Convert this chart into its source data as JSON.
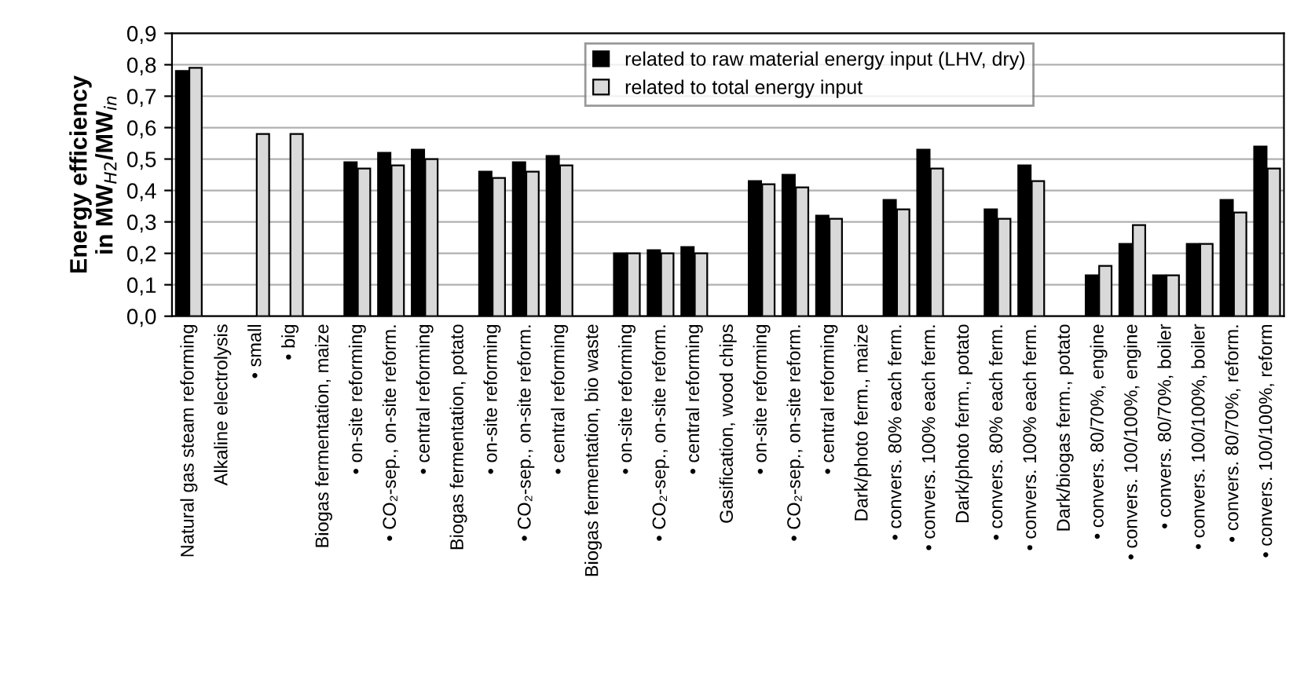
{
  "chart_data": {
    "type": "bar",
    "ylabel": "Energy efficiency\nin MW$_{H2}$/MW$_{in}$",
    "categories": [
      "Natural gas steam reforming",
      "Alkaline electrolysis",
      "• small",
      "• big",
      "Biogas fermentation, maize",
      "• on-site reforming",
      "• CO₂-sep., on-site reform.",
      "• central reforming",
      "Biogas fermentation, potato",
      "• on-site reforming",
      "• CO₂-sep., on-site reform.",
      "• central reforming",
      "Biogas fermentation, bio waste",
      "• on-site reforming",
      "• CO₂-sep., on-site reform.",
      "• central reforming",
      "Gasification, wood chips",
      "• on-site reforming",
      "• CO₂-sep., on-site reform.",
      "• central reforming",
      "Dark/photo ferm., maize",
      "• convers. 80% each ferm.",
      "• convers. 100% each ferm.",
      "Dark/photo ferm., potato",
      "• convers. 80% each ferm.",
      "• convers. 100% each ferm.",
      "Dark/biogas ferm., potato",
      "• convers. 80/70%, engine",
      "• convers. 100/100%, engine",
      "• convers. 80/70%, boiler",
      "• convers. 100/100%, boiler",
      "• convers. 80/70%, reform.",
      "• convers. 100/100%, reform"
    ],
    "series": [
      {
        "name": "related to raw material energy input (LHV, dry)",
        "color": "#000000",
        "values": [
          0.78,
          null,
          null,
          null,
          null,
          0.49,
          0.52,
          0.53,
          null,
          0.46,
          0.49,
          0.51,
          null,
          0.2,
          0.21,
          0.22,
          null,
          0.43,
          0.45,
          0.32,
          null,
          0.37,
          0.53,
          null,
          0.34,
          0.48,
          null,
          0.13,
          0.23,
          0.13,
          0.23,
          0.37,
          0.54
        ]
      },
      {
        "name": "related to total energy input",
        "color": "#d9d9d9",
        "values": [
          0.79,
          null,
          0.58,
          0.58,
          null,
          0.47,
          0.48,
          0.5,
          null,
          0.44,
          0.46,
          0.48,
          null,
          0.2,
          0.2,
          0.2,
          null,
          0.42,
          0.41,
          0.31,
          null,
          0.34,
          0.47,
          null,
          0.31,
          0.43,
          null,
          0.16,
          0.29,
          0.13,
          0.23,
          0.33,
          0.47
        ]
      }
    ],
    "ylim": [
      0,
      0.9
    ],
    "yticks": [
      {
        "value": 0,
        "label": "0,0"
      },
      {
        "value": 0.1,
        "label": "0,1"
      },
      {
        "value": 0.2,
        "label": "0,2"
      },
      {
        "value": 0.3,
        "label": "0,3"
      },
      {
        "value": 0.4,
        "label": "0,4"
      },
      {
        "value": 0.5,
        "label": "0,5"
      },
      {
        "value": 0.6,
        "label": "0,6"
      },
      {
        "value": 0.7,
        "label": "0,7"
      },
      {
        "value": 0.8,
        "label": "0,8"
      },
      {
        "value": 0.9,
        "label": "0,9"
      }
    ],
    "grid": "y",
    "legend": "top right"
  }
}
